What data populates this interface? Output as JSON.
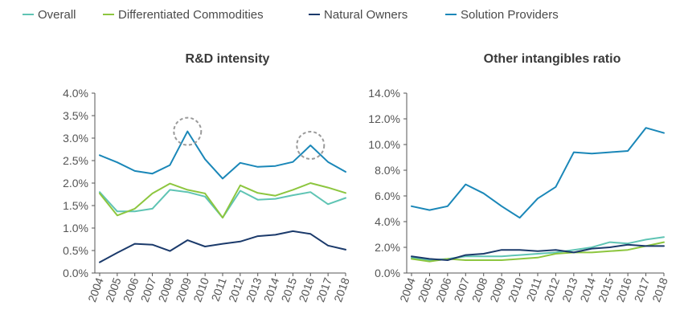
{
  "legend": [
    {
      "name": "Overall",
      "color": "#5fc4b4"
    },
    {
      "name": "Differentiated Commodities",
      "color": "#8dc63f"
    },
    {
      "name": "Natural Owners",
      "color": "#1b3a6b"
    },
    {
      "name": "Solution Providers",
      "color": "#1a87b8"
    }
  ],
  "chart_data": [
    {
      "type": "line",
      "title": "R&D intensity",
      "categories": [
        "2004",
        "2005",
        "2006",
        "2007",
        "2008",
        "2009",
        "2010",
        "2011",
        "2012",
        "2013",
        "2014",
        "2015",
        "2016",
        "2017",
        "2018"
      ],
      "y_ticks": [
        "0.0%",
        "0.5%",
        "1.0%",
        "1.5%",
        "2.0%",
        "2.5%",
        "3.0%",
        "3.5%",
        "4.0%"
      ],
      "ylim": [
        0,
        4.0
      ],
      "highlighted_points": [
        {
          "series": "Solution Providers",
          "year": "2009"
        },
        {
          "series": "Solution Providers",
          "year": "2016"
        }
      ],
      "series": [
        {
          "name": "Overall",
          "values": [
            1.8,
            1.37,
            1.37,
            1.43,
            1.85,
            1.8,
            1.7,
            1.23,
            1.83,
            1.63,
            1.65,
            1.73,
            1.8,
            1.53,
            1.67
          ]
        },
        {
          "name": "Differentiated Commodities",
          "values": [
            1.77,
            1.28,
            1.43,
            1.77,
            1.99,
            1.85,
            1.77,
            1.23,
            1.95,
            1.78,
            1.72,
            1.85,
            2.0,
            1.9,
            1.78
          ]
        },
        {
          "name": "Natural Owners",
          "values": [
            0.24,
            0.45,
            0.65,
            0.63,
            0.49,
            0.73,
            0.59,
            0.65,
            0.7,
            0.82,
            0.85,
            0.93,
            0.87,
            0.61,
            0.52
          ]
        },
        {
          "name": "Solution Providers",
          "values": [
            2.62,
            2.46,
            2.27,
            2.21,
            2.4,
            3.15,
            2.53,
            2.1,
            2.45,
            2.36,
            2.38,
            2.47,
            2.84,
            2.47,
            2.25
          ]
        }
      ]
    },
    {
      "type": "line",
      "title": "Other intangibles ratio",
      "categories": [
        "2004",
        "2005",
        "2006",
        "2007",
        "2008",
        "2009",
        "2010",
        "2011",
        "2012",
        "2013",
        "2014",
        "2015",
        "2016",
        "2017",
        "2018"
      ],
      "y_ticks": [
        "0.0%",
        "2.0%",
        "4.0%",
        "6.0%",
        "8.0%",
        "10.0%",
        "12.0%",
        "14.0%"
      ],
      "ylim": [
        0,
        14.0
      ],
      "series": [
        {
          "name": "Overall",
          "values": [
            1.2,
            1.0,
            1.1,
            1.3,
            1.3,
            1.3,
            1.4,
            1.5,
            1.6,
            1.8,
            2.0,
            2.4,
            2.3,
            2.6,
            2.8
          ]
        },
        {
          "name": "Differentiated Commodities",
          "values": [
            1.1,
            0.9,
            1.1,
            1.0,
            1.0,
            1.0,
            1.1,
            1.2,
            1.5,
            1.6,
            1.6,
            1.7,
            1.8,
            2.1,
            2.4
          ]
        },
        {
          "name": "Natural Owners",
          "values": [
            1.3,
            1.1,
            1.0,
            1.4,
            1.5,
            1.8,
            1.8,
            1.7,
            1.8,
            1.6,
            1.9,
            2.0,
            2.2,
            2.1,
            2.1
          ]
        },
        {
          "name": "Solution Providers",
          "values": [
            5.2,
            4.9,
            5.2,
            6.9,
            6.2,
            5.2,
            4.3,
            5.8,
            6.7,
            9.4,
            9.3,
            9.4,
            9.5,
            11.3,
            10.9
          ]
        }
      ]
    }
  ]
}
